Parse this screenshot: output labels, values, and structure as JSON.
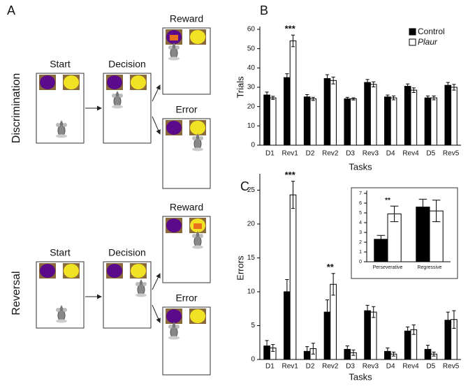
{
  "diagram": {
    "panel_label": "A",
    "rows": [
      {
        "label": "Discrimination",
        "stages": [
          "Start",
          "Decision",
          "Reward",
          "Error"
        ]
      },
      {
        "label": "Reversal",
        "stages": [
          "Start",
          "Decision",
          "Reward",
          "Error"
        ]
      }
    ]
  },
  "chart_data": [
    {
      "type": "bar",
      "panel_label": "B",
      "x_label": "Tasks",
      "y_label": "Trials",
      "categories": [
        "D1",
        "Rev1",
        "D2",
        "Rev2",
        "D3",
        "Rev3",
        "D4",
        "Rev4",
        "D5",
        "Rev5"
      ],
      "series": [
        {
          "name": "Control",
          "color": "#000000",
          "values": [
            26,
            35,
            25,
            34.5,
            24,
            32.5,
            25,
            30.5,
            24.5,
            31
          ],
          "errors": [
            1.5,
            2,
            1.2,
            2,
            0.8,
            1.5,
            1,
            1.2,
            1,
            1.5
          ]
        },
        {
          "name": "Plaur",
          "color": "#ffffff",
          "values": [
            24.5,
            54,
            24,
            33.5,
            24,
            31.5,
            24.5,
            28.5,
            24.5,
            30
          ],
          "errors": [
            0.8,
            3,
            0.8,
            1.8,
            0.6,
            1.3,
            1,
            1.2,
            1,
            1.5
          ]
        }
      ],
      "annotations": [
        {
          "text": "***",
          "x": "Rev1"
        }
      ],
      "ylim": [
        0,
        60
      ],
      "yticks": [
        0,
        10,
        20,
        30,
        40,
        50,
        60
      ],
      "legend": "upper right"
    },
    {
      "type": "bar",
      "panel_label": "C",
      "x_label": "Tasks",
      "y_label": "Errors",
      "categories": [
        "D1",
        "Rev1",
        "D2",
        "Rev2",
        "D3",
        "Rev3",
        "D4",
        "Rev4",
        "D5",
        "Rev5"
      ],
      "series": [
        {
          "name": "Control",
          "color": "#000000",
          "values": [
            2,
            10,
            1.2,
            7,
            1.5,
            7.2,
            1.2,
            4.2,
            1.5,
            5.8
          ],
          "errors": [
            0.8,
            1.8,
            0.7,
            1.8,
            0.5,
            0.8,
            0.5,
            0.6,
            0.6,
            1.2
          ]
        },
        {
          "name": "Plaur",
          "color": "#ffffff",
          "values": [
            1.7,
            24.3,
            1.6,
            11.1,
            1,
            7,
            0.8,
            4.4,
            0.8,
            5.9
          ],
          "errors": [
            0.5,
            2,
            0.8,
            1.6,
            0.4,
            0.8,
            0.3,
            0.7,
            0.3,
            1.3
          ]
        }
      ],
      "annotations": [
        {
          "text": "***",
          "x": "Rev1"
        },
        {
          "text": "**",
          "x": "Rev2"
        }
      ],
      "ylim": [
        0,
        27
      ],
      "yticks": [
        0,
        5,
        10,
        15,
        20,
        25
      ]
    },
    {
      "type": "bar",
      "categories": [
        "Perseverative",
        "Regressive"
      ],
      "series": [
        {
          "name": "Control",
          "color": "#000000",
          "values": [
            2.3,
            5.6
          ],
          "errors": [
            0.4,
            0.8
          ]
        },
        {
          "name": "Plaur",
          "color": "#ffffff",
          "values": [
            4.9,
            5.2
          ],
          "errors": [
            0.8,
            1.1
          ]
        }
      ],
      "annotations": [
        {
          "text": "**",
          "x": "Perseverative"
        }
      ],
      "ylim": [
        0,
        7
      ],
      "yticks": [
        0,
        1,
        2,
        3,
        4,
        5,
        6,
        7
      ]
    }
  ]
}
